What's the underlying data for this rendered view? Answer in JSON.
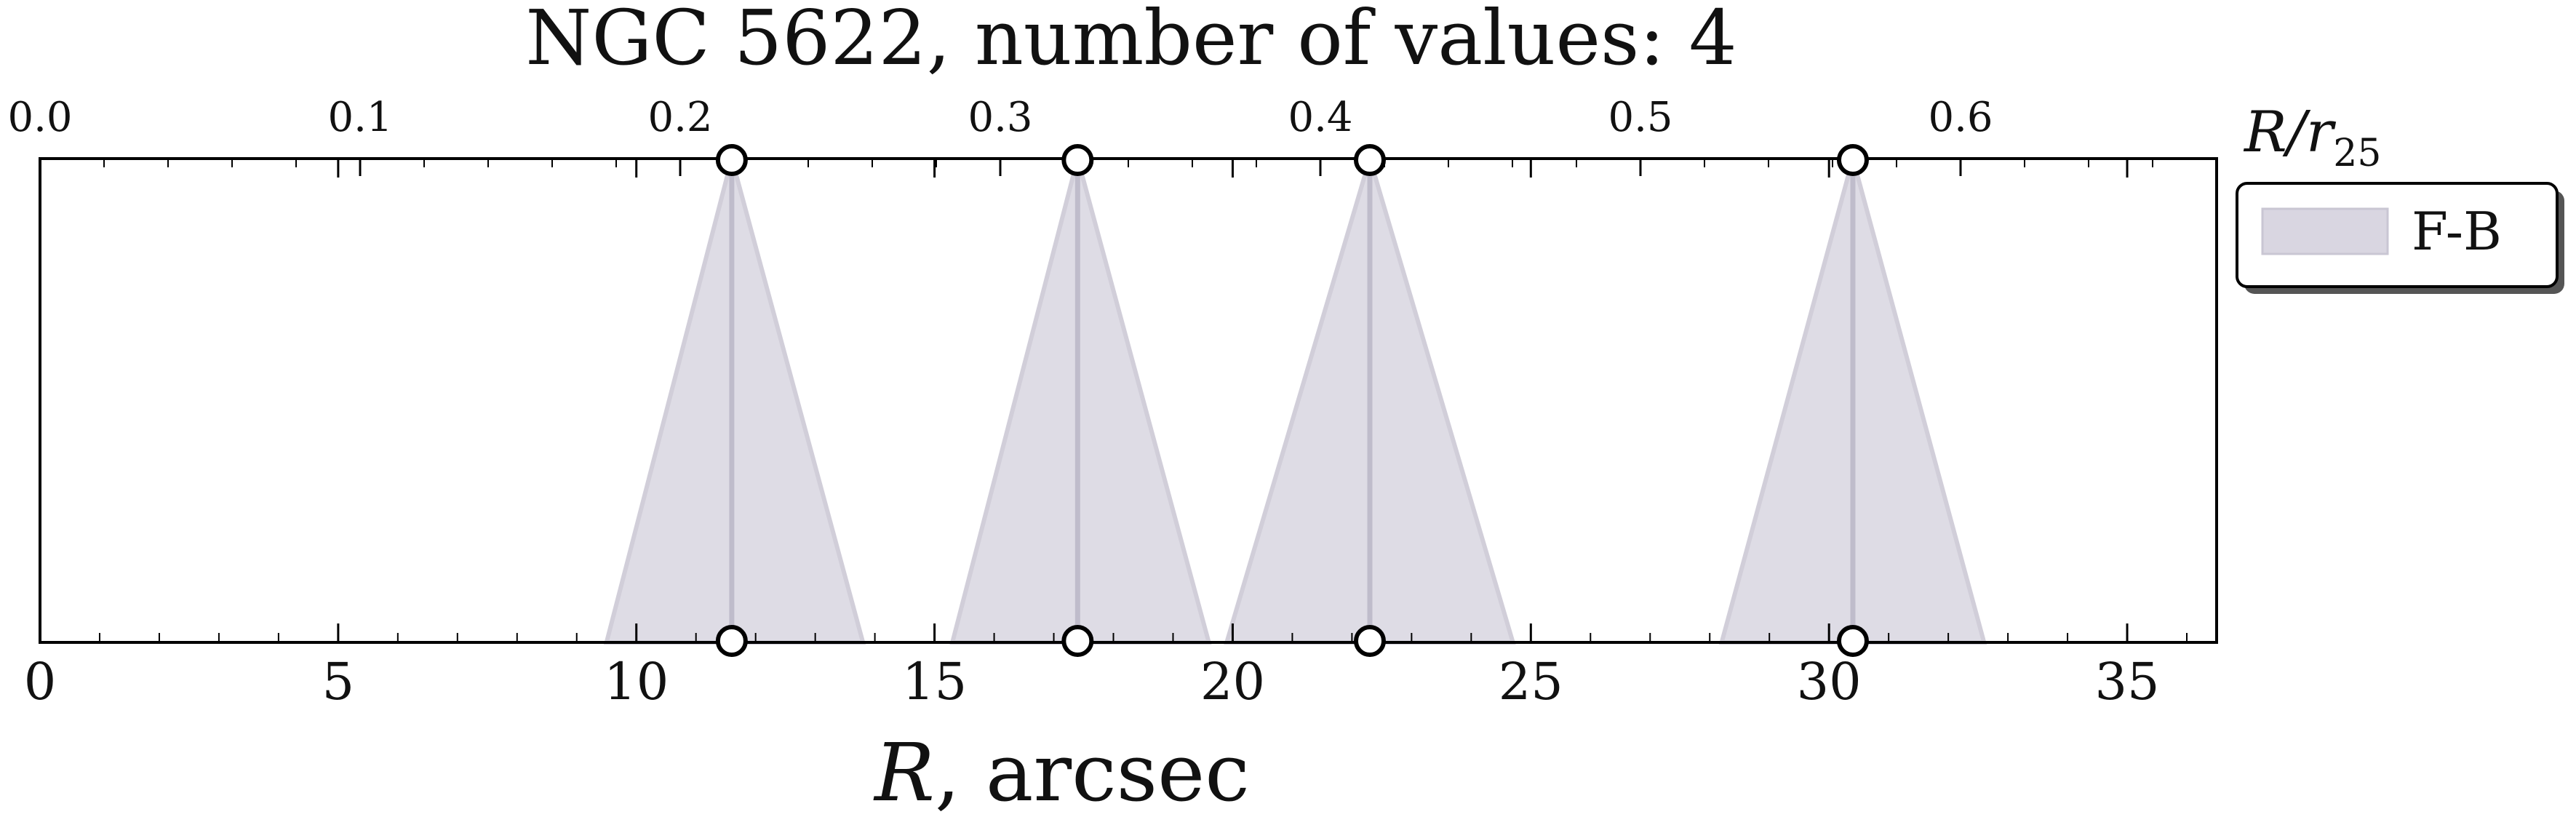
{
  "chart_data": {
    "type": "area",
    "title": "NGC 5622, number of values: 4",
    "xlabel_italic": "R",
    "xlabel_rest": ", arcsec",
    "xlim": [
      0,
      36.5
    ],
    "xticks": [
      0,
      5,
      10,
      15,
      20,
      25,
      30,
      35
    ],
    "top_axis": {
      "label_main": "R/r",
      "label_sub": "25",
      "xlim": [
        0.0,
        0.68
      ],
      "ticks": [
        0.0,
        0.1,
        0.2,
        0.3,
        0.4,
        0.5,
        0.6
      ],
      "tick_labels": [
        "0.0",
        "0.1",
        "0.2",
        "0.3",
        "0.4",
        "0.5",
        "0.6"
      ]
    },
    "grid": false,
    "legend": {
      "placement": "outside-right",
      "entries": [
        "F-B"
      ]
    },
    "series": [
      {
        "name": "F-B",
        "color": "#d9d6e1",
        "line_color": "#c9c6d3",
        "peaks": [
          {
            "r": 11.6,
            "left": 9.5,
            "right": 13.8
          },
          {
            "r": 17.4,
            "left": 15.3,
            "right": 19.6
          },
          {
            "r": 22.3,
            "left": 19.9,
            "right": 24.7
          },
          {
            "r": 30.4,
            "left": 28.2,
            "right": 32.6
          }
        ]
      }
    ]
  }
}
